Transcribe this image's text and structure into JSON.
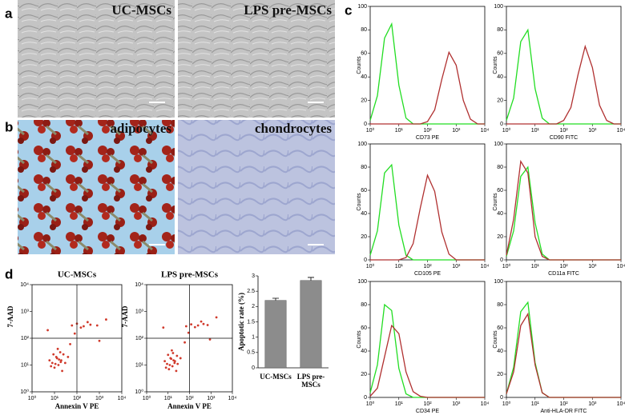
{
  "panel_labels": [
    "a",
    "b",
    "c",
    "d"
  ],
  "images": [
    {
      "label": "UC-MSCs"
    },
    {
      "label": "LPS pre-MSCs"
    },
    {
      "label": "adipocytes"
    },
    {
      "label": "chondrocytes"
    }
  ],
  "chart_data": [
    {
      "type": "line",
      "x_label": "CD73 PE",
      "y_label": "Counts",
      "x_scale": "log",
      "x": [
        1,
        1.78,
        3.16,
        5.62,
        10,
        17.8,
        31.6,
        56.2,
        100,
        178,
        316,
        562,
        1000,
        1780,
        3160,
        5620,
        10000
      ],
      "series": [
        {
          "color": "#22dd22",
          "values": [
            3,
            24,
            73,
            85,
            33,
            5,
            0,
            0,
            0,
            0,
            0,
            0,
            0,
            0,
            0,
            0,
            0
          ]
        },
        {
          "color": "#b03030",
          "values": [
            0,
            0,
            0,
            0,
            0,
            0,
            0,
            0,
            2,
            12,
            38,
            61,
            50,
            20,
            4,
            0,
            0
          ]
        }
      ],
      "xlim": [
        1,
        10000
      ],
      "ylim": [
        0,
        100
      ],
      "xticks": [
        {
          "value": 1,
          "label": "10⁰"
        },
        {
          "value": 10,
          "label": "10¹"
        },
        {
          "value": 100,
          "label": "10²"
        },
        {
          "value": 1000,
          "label": "10³"
        },
        {
          "value": 10000,
          "label": "10⁴"
        }
      ],
      "yticks": [
        0,
        20,
        40,
        60,
        80,
        100
      ]
    },
    {
      "type": "line",
      "x_label": "CD90 FITC",
      "y_label": "Counts",
      "x_scale": "log",
      "x": [
        1,
        1.78,
        3.16,
        5.62,
        10,
        17.8,
        31.6,
        56.2,
        100,
        178,
        316,
        562,
        1000,
        1780,
        3160,
        5620,
        10000
      ],
      "series": [
        {
          "color": "#22dd22",
          "values": [
            3,
            22,
            70,
            80,
            30,
            5,
            0,
            0,
            0,
            0,
            0,
            0,
            0,
            0,
            0,
            0,
            0
          ]
        },
        {
          "color": "#b03030",
          "values": [
            0,
            0,
            0,
            0,
            0,
            0,
            0,
            0,
            3,
            14,
            42,
            66,
            48,
            16,
            3,
            0,
            0
          ]
        }
      ],
      "xlim": [
        1,
        10000
      ],
      "ylim": [
        0,
        100
      ],
      "xticks": [
        {
          "value": 1,
          "label": "10⁰"
        },
        {
          "value": 10,
          "label": "10¹"
        },
        {
          "value": 100,
          "label": "10²"
        },
        {
          "value": 1000,
          "label": "10³"
        },
        {
          "value": 10000,
          "label": "10⁴"
        }
      ],
      "yticks": [
        0,
        20,
        40,
        60,
        80,
        100
      ]
    },
    {
      "type": "line",
      "x_label": "CD105 PE",
      "y_label": "Counts",
      "x_scale": "log",
      "x": [
        1,
        1.78,
        3.16,
        5.62,
        10,
        17.8,
        31.6,
        56.2,
        100,
        178,
        316,
        562,
        1000,
        1780,
        3160,
        5620,
        10000
      ],
      "series": [
        {
          "color": "#22dd22",
          "values": [
            4,
            25,
            75,
            82,
            30,
            4,
            0,
            0,
            0,
            0,
            0,
            0,
            0,
            0,
            0,
            0,
            0
          ]
        },
        {
          "color": "#b03030",
          "values": [
            0,
            0,
            0,
            0,
            0,
            2,
            14,
            45,
            73,
            59,
            24,
            5,
            0,
            0,
            0,
            0,
            0
          ]
        }
      ],
      "xlim": [
        1,
        10000
      ],
      "ylim": [
        0,
        100
      ],
      "xticks": [
        {
          "value": 1,
          "label": "10⁰"
        },
        {
          "value": 10,
          "label": "10¹"
        },
        {
          "value": 100,
          "label": "10²"
        },
        {
          "value": 1000,
          "label": "10³"
        },
        {
          "value": 10000,
          "label": "10⁴"
        }
      ],
      "yticks": [
        0,
        20,
        40,
        60,
        80,
        100
      ]
    },
    {
      "type": "line",
      "x_label": "CD11a FITC",
      "y_label": "Counts",
      "x_scale": "log",
      "x": [
        1,
        1.78,
        3.16,
        5.62,
        10,
        17.8,
        31.6,
        56.2,
        100,
        178,
        316,
        562,
        1000,
        1780,
        3160,
        5620,
        10000
      ],
      "series": [
        {
          "color": "#22dd22",
          "values": [
            3,
            25,
            72,
            80,
            32,
            5,
            0,
            0,
            0,
            0,
            0,
            0,
            0,
            0,
            0,
            0,
            0
          ]
        },
        {
          "color": "#b03030",
          "values": [
            4,
            35,
            85,
            75,
            20,
            3,
            0,
            0,
            0,
            0,
            0,
            0,
            0,
            0,
            0,
            0,
            0
          ]
        }
      ],
      "xlim": [
        1,
        10000
      ],
      "ylim": [
        0,
        100
      ],
      "xticks": [
        {
          "value": 1,
          "label": "10⁰"
        },
        {
          "value": 10,
          "label": "10¹"
        },
        {
          "value": 100,
          "label": "10²"
        },
        {
          "value": 1000,
          "label": "10³"
        },
        {
          "value": 10000,
          "label": "10⁴"
        }
      ],
      "yticks": [
        0,
        20,
        40,
        60,
        80,
        100
      ]
    },
    {
      "type": "line",
      "x_label": "CD34 PE",
      "y_label": "Counts",
      "x_scale": "log",
      "x": [
        1,
        1.78,
        3.16,
        5.62,
        10,
        17.8,
        31.6,
        56.2,
        100,
        178,
        316,
        562,
        1000,
        1780,
        3160,
        5620,
        10000
      ],
      "series": [
        {
          "color": "#22dd22",
          "values": [
            4,
            28,
            80,
            75,
            25,
            3,
            0,
            0,
            0,
            0,
            0,
            0,
            0,
            0,
            0,
            0,
            0
          ]
        },
        {
          "color": "#b03030",
          "values": [
            1,
            8,
            35,
            62,
            55,
            22,
            5,
            1,
            0,
            0,
            0,
            0,
            0,
            0,
            0,
            0,
            0
          ]
        }
      ],
      "xlim": [
        1,
        10000
      ],
      "ylim": [
        0,
        100
      ],
      "xticks": [
        {
          "value": 1,
          "label": "10⁰"
        },
        {
          "value": 10,
          "label": "10¹"
        },
        {
          "value": 100,
          "label": "10²"
        },
        {
          "value": 1000,
          "label": "10³"
        },
        {
          "value": 10000,
          "label": "10⁴"
        }
      ],
      "yticks": [
        0,
        20,
        40,
        60,
        80,
        100
      ]
    },
    {
      "type": "line",
      "x_label": "Anti-HLA-DR FITC",
      "y_label": "Counts",
      "x_scale": "log",
      "x": [
        1,
        1.78,
        3.16,
        5.62,
        10,
        17.8,
        31.6,
        56.2,
        100,
        178,
        316,
        562,
        1000,
        1780,
        3160,
        5620,
        10000
      ],
      "series": [
        {
          "color": "#22dd22",
          "values": [
            3,
            26,
            74,
            82,
            30,
            4,
            0,
            0,
            0,
            0,
            0,
            0,
            0,
            0,
            0,
            0,
            0
          ]
        },
        {
          "color": "#b03030",
          "values": [
            3,
            22,
            62,
            72,
            28,
            4,
            0,
            0,
            0,
            0,
            0,
            0,
            0,
            0,
            0,
            0,
            0
          ]
        }
      ],
      "xlim": [
        1,
        10000
      ],
      "ylim": [
        0,
        100
      ],
      "xticks": [
        {
          "value": 1,
          "label": "10⁰"
        },
        {
          "value": 10,
          "label": "10¹"
        },
        {
          "value": 100,
          "label": "10²"
        },
        {
          "value": 1000,
          "label": "10³"
        },
        {
          "value": 10000,
          "label": "10⁴"
        }
      ],
      "yticks": [
        0,
        20,
        40,
        60,
        80,
        100
      ]
    },
    {
      "type": "scatter",
      "title": "UC-MSCs",
      "x_label": "Annexin V PE",
      "y_label": "7-AAD",
      "x_scale": "log",
      "y_scale": "log",
      "color": "#d0392b",
      "x": [
        8,
        12,
        15,
        20,
        10,
        25,
        18,
        6,
        30,
        14,
        22,
        9,
        40,
        16,
        11,
        13,
        7,
        19,
        60,
        100,
        200,
        400,
        800,
        150,
        300,
        50,
        80,
        5,
        1000,
        2000
      ],
      "y": [
        12,
        20,
        10,
        15,
        8,
        25,
        30,
        15,
        12,
        40,
        6,
        25,
        20,
        16,
        11,
        18,
        9,
        13,
        300,
        350,
        280,
        320,
        300,
        250,
        400,
        60,
        150,
        200,
        80,
        500
      ],
      "xlim": [
        1,
        10000
      ],
      "ylim": [
        1,
        10000
      ],
      "gate_x": 100,
      "gate_y": 100,
      "xticks": [
        {
          "value": 1,
          "label": "10⁰"
        },
        {
          "value": 10,
          "label": "10¹"
        },
        {
          "value": 100,
          "label": "10²"
        },
        {
          "value": 1000,
          "label": "10³"
        },
        {
          "value": 10000,
          "label": "10⁴"
        }
      ],
      "yticks": [
        {
          "value": 1,
          "label": "10⁰"
        },
        {
          "value": 10,
          "label": "10¹"
        },
        {
          "value": 100,
          "label": "10²"
        },
        {
          "value": 1000,
          "label": "10³"
        },
        {
          "value": 10000,
          "label": "10⁴"
        }
      ]
    },
    {
      "type": "scatter",
      "title": "LPS pre-MSCs",
      "x_label": "Annexin V PE",
      "y_label": "7-AAD",
      "x_scale": "log",
      "y_scale": "log",
      "color": "#d0392b",
      "x": [
        9,
        13,
        16,
        21,
        11,
        26,
        17,
        7,
        28,
        15,
        24,
        10,
        38,
        18,
        12,
        14,
        8,
        20,
        70,
        120,
        250,
        450,
        700,
        180,
        350,
        60,
        90,
        6,
        900,
        1800
      ],
      "y": [
        11,
        18,
        9,
        14,
        7,
        22,
        28,
        14,
        11,
        35,
        6,
        24,
        18,
        15,
        10,
        17,
        8,
        12,
        280,
        330,
        300,
        340,
        310,
        260,
        420,
        70,
        160,
        250,
        90,
        600
      ],
      "xlim": [
        1,
        10000
      ],
      "ylim": [
        1,
        10000
      ],
      "gate_x": 100,
      "gate_y": 100,
      "xticks": [
        {
          "value": 1,
          "label": "10⁰"
        },
        {
          "value": 10,
          "label": "10¹"
        },
        {
          "value": 100,
          "label": "10²"
        },
        {
          "value": 1000,
          "label": "10³"
        },
        {
          "value": 10000,
          "label": "10⁴"
        }
      ],
      "yticks": [
        {
          "value": 1,
          "label": "10⁰"
        },
        {
          "value": 10,
          "label": "10¹"
        },
        {
          "value": 100,
          "label": "10²"
        },
        {
          "value": 1000,
          "label": "10³"
        },
        {
          "value": 10000,
          "label": "10⁴"
        }
      ]
    },
    {
      "type": "bar",
      "y_label": "Apoptotic rate (%)",
      "color": "#8c8c8c",
      "categories": [
        "UC-MSCs",
        "LPS pre-MSCs"
      ],
      "values": [
        2.2,
        2.85
      ],
      "errors": [
        0.07,
        0.1
      ],
      "ylim": [
        0,
        3
      ],
      "yticks": [
        0,
        0.5,
        1,
        1.5,
        2,
        2.5,
        3
      ]
    }
  ]
}
